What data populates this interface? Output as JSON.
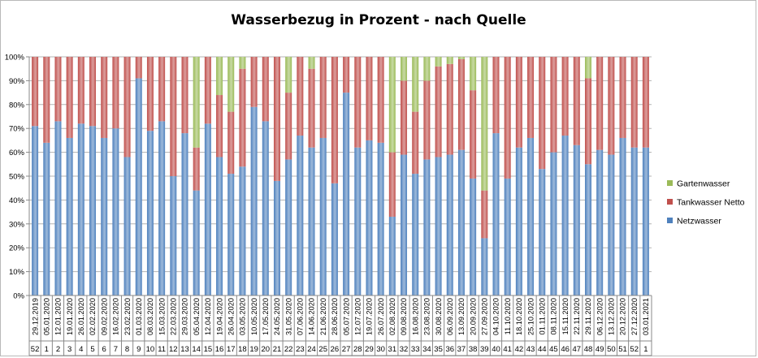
{
  "chart_data": {
    "type": "bar",
    "stacked": true,
    "percent": true,
    "title": "Wasserbezug in Prozent - nach Quelle",
    "ylim": [
      0,
      100
    ],
    "y_ticks": [
      "0%",
      "10%",
      "20%",
      "30%",
      "40%",
      "50%",
      "60%",
      "70%",
      "80%",
      "90%",
      "100%"
    ],
    "grid": true,
    "legend_position": "right",
    "categories": [
      "29.12.2019",
      "05.01.2020",
      "12.01.2020",
      "19.01.2020",
      "26.01.2020",
      "02.02.2020",
      "09.02.2020",
      "16.02.2020",
      "23.02.2020",
      "01.03.2020",
      "08.03.2020",
      "15.03.2020",
      "22.03.2020",
      "29.03.2020",
      "05.04.2020",
      "12.04.2020",
      "19.04.2020",
      "26.04.2020",
      "03.05.2020",
      "10.05.2020",
      "17.05.2020",
      "24.05.2020",
      "31.05.2020",
      "07.06.2020",
      "14.06.2020",
      "21.06.2020",
      "28.06.2020",
      "05.07.2020",
      "12.07.2020",
      "19.07.2020",
      "26.07.2020",
      "02.08.2020",
      "09.08.2020",
      "16.08.2020",
      "23.08.2020",
      "30.08.2020",
      "06.09.2020",
      "13.09.2020",
      "20.09.2020",
      "27.09.2020",
      "04.10.2020",
      "11.10.2020",
      "18.10.2020",
      "25.10.2020",
      "01.11.2020",
      "08.11.2020",
      "15.11.2020",
      "22.11.2020",
      "29.11.2020",
      "06.12.2020",
      "13.12.2020",
      "20.12.2020",
      "27.12.2020",
      "03.01.2021"
    ],
    "weeks": [
      "52",
      "1",
      "2",
      "3",
      "4",
      "5",
      "6",
      "7",
      "8",
      "9",
      "10",
      "11",
      "12",
      "13",
      "14",
      "15",
      "16",
      "17",
      "18",
      "19",
      "20",
      "21",
      "22",
      "23",
      "24",
      "25",
      "26",
      "27",
      "28",
      "29",
      "30",
      "31",
      "32",
      "33",
      "34",
      "35",
      "36",
      "37",
      "38",
      "39",
      "40",
      "41",
      "42",
      "43",
      "44",
      "45",
      "46",
      "47",
      "48",
      "49",
      "50",
      "51",
      "52",
      "1"
    ],
    "series": [
      {
        "name": "Netzwasser",
        "color": "#4f81bd",
        "values": [
          71,
          64,
          73,
          66,
          72,
          71,
          66,
          70,
          58,
          91,
          69,
          73,
          50,
          68,
          44,
          72,
          58,
          51,
          54,
          79,
          73,
          48,
          57,
          67,
          62,
          66,
          47,
          85,
          62,
          65,
          64,
          33,
          59,
          51,
          57,
          58,
          59,
          61,
          49,
          24,
          68,
          49,
          62,
          66,
          53,
          60,
          67,
          63,
          55,
          61,
          59,
          66,
          62,
          62
        ]
      },
      {
        "name": "Tankwasser Netto",
        "color": "#c0504d",
        "values": [
          29,
          36,
          27,
          34,
          28,
          29,
          34,
          30,
          42,
          9,
          31,
          27,
          50,
          32,
          18,
          28,
          26,
          26,
          41,
          21,
          27,
          52,
          28,
          33,
          33,
          34,
          53,
          15,
          38,
          35,
          36,
          27,
          31,
          26,
          33,
          38,
          38,
          38,
          37,
          20,
          32,
          51,
          38,
          34,
          47,
          40,
          33,
          37,
          36,
          39,
          41,
          34,
          38,
          38
        ]
      },
      {
        "name": "Gartenwasser",
        "color": "#9bbb59",
        "values": [
          0,
          0,
          0,
          0,
          0,
          0,
          0,
          0,
          0,
          0,
          0,
          0,
          0,
          0,
          38,
          0,
          16,
          23,
          5,
          0,
          0,
          0,
          15,
          0,
          5,
          0,
          0,
          0,
          0,
          0,
          0,
          40,
          10,
          23,
          10,
          4,
          3,
          1,
          14,
          56,
          0,
          0,
          0,
          0,
          0,
          0,
          0,
          0,
          9,
          0,
          0,
          0,
          0,
          0
        ]
      }
    ],
    "legend": [
      "Gartenwasser",
      "Tankwasser Netto",
      "Netzwasser"
    ]
  }
}
